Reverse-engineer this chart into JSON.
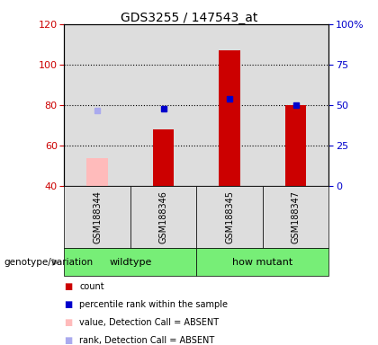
{
  "title": "GDS3255 / 147543_at",
  "samples": [
    "GSM188344",
    "GSM188346",
    "GSM188345",
    "GSM188347"
  ],
  "groups": [
    {
      "name": "wildtype",
      "indices": [
        0,
        1
      ]
    },
    {
      "name": "how mutant",
      "indices": [
        2,
        3
      ]
    }
  ],
  "ylim_left": [
    40,
    120
  ],
  "ylim_right": [
    0,
    100
  ],
  "yticks_left": [
    40,
    60,
    80,
    100,
    120
  ],
  "yticks_right": [
    0,
    25,
    50,
    75,
    100
  ],
  "ytick_labels_right": [
    "0",
    "25",
    "50",
    "75",
    "100%"
  ],
  "bar_bottom": 40,
  "count_bars": {
    "GSM188344": {
      "value": null,
      "absent_value": 54,
      "color_absent": "#ffbbbb",
      "color": null
    },
    "GSM188346": {
      "value": 68,
      "absent_value": null,
      "color_absent": null,
      "color": "#cc0000"
    },
    "GSM188345": {
      "value": 107,
      "absent_value": null,
      "color_absent": null,
      "color": "#cc0000"
    },
    "GSM188347": {
      "value": 80,
      "absent_value": null,
      "color_absent": null,
      "color": "#cc0000"
    }
  },
  "rank_dots": {
    "GSM188344": {
      "value": 47,
      "absent": true,
      "color_absent": "#aaaaee",
      "color": null
    },
    "GSM188346": {
      "value": 48,
      "absent": false,
      "color_absent": null,
      "color": "#0000cc"
    },
    "GSM188345": {
      "value": 54,
      "absent": false,
      "color_absent": null,
      "color": "#0000cc"
    },
    "GSM188347": {
      "value": 50,
      "absent": false,
      "color_absent": null,
      "color": "#0000cc"
    }
  },
  "legend_items": [
    {
      "label": "count",
      "color": "#cc0000"
    },
    {
      "label": "percentile rank within the sample",
      "color": "#0000cc"
    },
    {
      "label": "value, Detection Call = ABSENT",
      "color": "#ffbbbb"
    },
    {
      "label": "rank, Detection Call = ABSENT",
      "color": "#aaaaee"
    }
  ],
  "genotype_label": "genotype/variation",
  "plot_bg": "#dddddd",
  "group_bar_color": "#77ee77",
  "title_fontsize": 10,
  "axis_color_left": "#cc0000",
  "axis_color_right": "#0000cc",
  "bar_width": 0.32,
  "dot_size": 5
}
